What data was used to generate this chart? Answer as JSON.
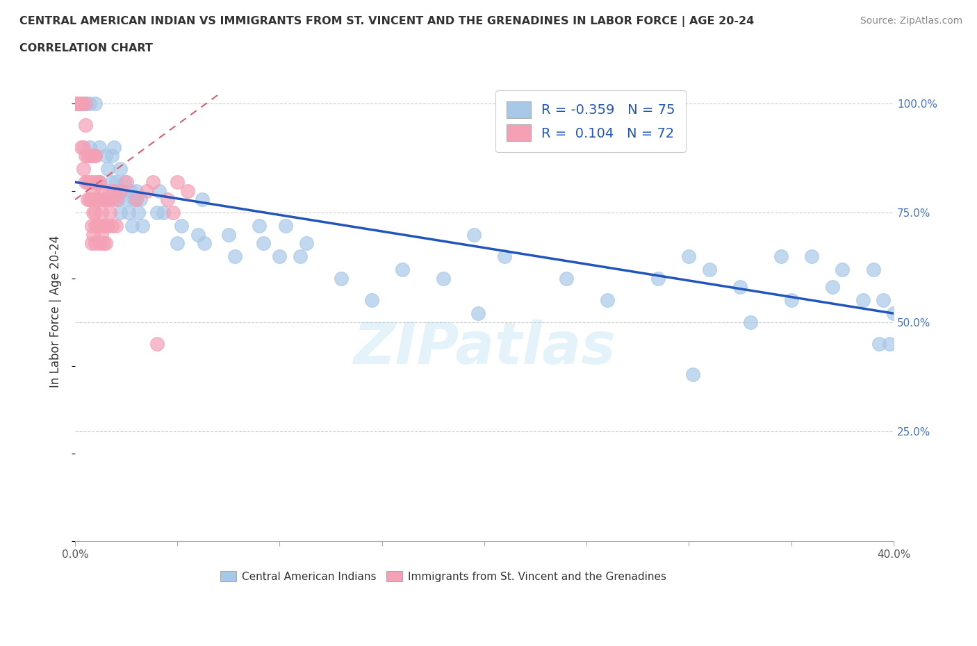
{
  "title_line1": "CENTRAL AMERICAN INDIAN VS IMMIGRANTS FROM ST. VINCENT AND THE GRENADINES IN LABOR FORCE | AGE 20-24",
  "title_line2": "CORRELATION CHART",
  "source_text": "Source: ZipAtlas.com",
  "ylabel": "In Labor Force | Age 20-24",
  "xlim": [
    0.0,
    0.4
  ],
  "ylim": [
    0.0,
    1.05
  ],
  "x_ticks": [
    0.0,
    0.05,
    0.1,
    0.15,
    0.2,
    0.25,
    0.3,
    0.35,
    0.4
  ],
  "y_ticks_right": [
    0.25,
    0.5,
    0.75,
    1.0
  ],
  "y_tick_labels_right": [
    "25.0%",
    "50.0%",
    "75.0%",
    "100.0%"
  ],
  "blue_color": "#a8c8e8",
  "pink_color": "#f4a0b5",
  "blue_line_color": "#2255bb",
  "pink_line_color": "#d46070",
  "R_blue": -0.359,
  "N_blue": 75,
  "R_pink": 0.104,
  "N_pink": 72,
  "legend_label_blue": "Central American Indians",
  "legend_label_pink": "Immigrants from St. Vincent and the Grenadines",
  "watermark": "ZIPatlas",
  "blue_scatter_x": [
    0.005,
    0.005,
    0.005,
    0.007,
    0.007,
    0.01,
    0.01,
    0.012,
    0.012,
    0.012,
    0.015,
    0.015,
    0.016,
    0.018,
    0.018,
    0.019,
    0.02,
    0.02,
    0.021,
    0.022,
    0.022,
    0.023,
    0.024,
    0.025,
    0.026,
    0.027,
    0.028,
    0.029,
    0.03,
    0.03,
    0.031,
    0.032,
    0.033,
    0.04,
    0.041,
    0.043,
    0.05,
    0.052,
    0.06,
    0.062,
    0.063,
    0.075,
    0.078,
    0.09,
    0.092,
    0.1,
    0.103,
    0.11,
    0.113,
    0.13,
    0.145,
    0.16,
    0.18,
    0.195,
    0.197,
    0.21,
    0.24,
    0.26,
    0.285,
    0.3,
    0.302,
    0.31,
    0.325,
    0.33,
    0.345,
    0.35,
    0.36,
    0.37,
    0.375,
    0.385,
    0.39,
    0.393,
    0.395,
    0.398,
    0.4
  ],
  "blue_scatter_y": [
    1.0,
    1.0,
    1.0,
    1.0,
    0.9,
    0.88,
    1.0,
    0.82,
    0.82,
    0.9,
    0.88,
    0.78,
    0.85,
    0.88,
    0.82,
    0.9,
    0.8,
    0.82,
    0.78,
    0.85,
    0.75,
    0.8,
    0.82,
    0.78,
    0.75,
    0.8,
    0.72,
    0.78,
    0.8,
    0.78,
    0.75,
    0.78,
    0.72,
    0.75,
    0.8,
    0.75,
    0.68,
    0.72,
    0.7,
    0.78,
    0.68,
    0.7,
    0.65,
    0.72,
    0.68,
    0.65,
    0.72,
    0.65,
    0.68,
    0.6,
    0.55,
    0.62,
    0.6,
    0.7,
    0.52,
    0.65,
    0.6,
    0.55,
    0.6,
    0.65,
    0.38,
    0.62,
    0.58,
    0.5,
    0.65,
    0.55,
    0.65,
    0.58,
    0.62,
    0.55,
    0.62,
    0.45,
    0.55,
    0.45,
    0.52
  ],
  "pink_scatter_x": [
    0.0,
    0.0,
    0.0,
    0.001,
    0.001,
    0.002,
    0.002,
    0.003,
    0.003,
    0.003,
    0.004,
    0.004,
    0.005,
    0.005,
    0.005,
    0.005,
    0.006,
    0.006,
    0.006,
    0.007,
    0.007,
    0.007,
    0.008,
    0.008,
    0.008,
    0.008,
    0.008,
    0.009,
    0.009,
    0.009,
    0.009,
    0.01,
    0.01,
    0.01,
    0.01,
    0.01,
    0.01,
    0.011,
    0.011,
    0.011,
    0.012,
    0.012,
    0.012,
    0.012,
    0.013,
    0.013,
    0.013,
    0.014,
    0.014,
    0.014,
    0.015,
    0.015,
    0.015,
    0.016,
    0.016,
    0.017,
    0.017,
    0.018,
    0.018,
    0.019,
    0.02,
    0.02,
    0.022,
    0.025,
    0.03,
    0.035,
    0.038,
    0.04,
    0.045,
    0.048,
    0.05,
    0.055
  ],
  "pink_scatter_y": [
    1.0,
    1.0,
    1.0,
    1.0,
    1.0,
    1.0,
    1.0,
    1.0,
    1.0,
    0.9,
    0.9,
    0.85,
    1.0,
    0.95,
    0.88,
    0.82,
    0.88,
    0.82,
    0.78,
    0.88,
    0.82,
    0.78,
    0.88,
    0.82,
    0.78,
    0.72,
    0.68,
    0.88,
    0.8,
    0.75,
    0.7,
    0.88,
    0.82,
    0.78,
    0.75,
    0.72,
    0.68,
    0.82,
    0.78,
    0.72,
    0.82,
    0.78,
    0.72,
    0.68,
    0.8,
    0.75,
    0.7,
    0.78,
    0.72,
    0.68,
    0.78,
    0.72,
    0.68,
    0.78,
    0.72,
    0.8,
    0.75,
    0.78,
    0.72,
    0.8,
    0.78,
    0.72,
    0.8,
    0.82,
    0.78,
    0.8,
    0.82,
    0.45,
    0.78,
    0.75,
    0.82,
    0.8
  ]
}
